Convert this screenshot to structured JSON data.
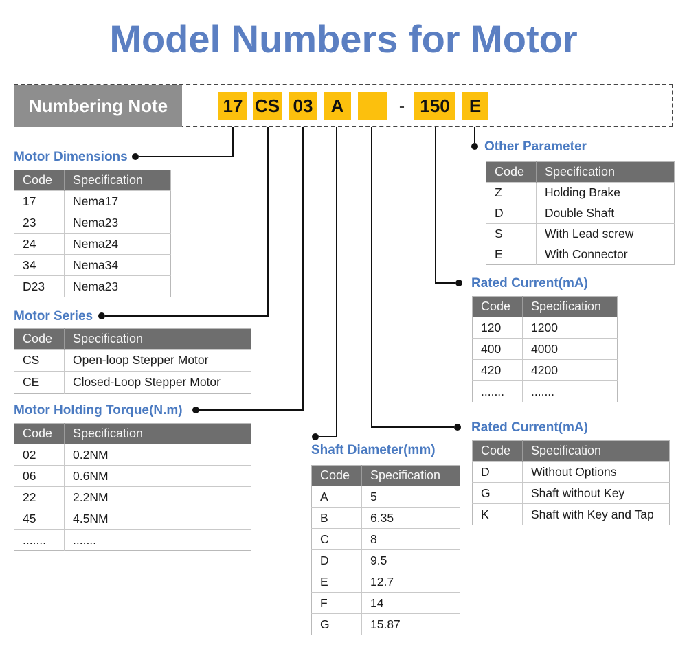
{
  "page_title": "Model Numbers for Motor",
  "numbering": {
    "label": "Numbering Note",
    "codes": [
      "17",
      "CS",
      "03",
      "A",
      "",
      "150",
      "E"
    ],
    "separator": "-"
  },
  "colors": {
    "title_blue": "#5b7fc2",
    "section_blue": "#4a7ac1",
    "header_gray": "#6e6e6e",
    "label_gray": "#8e8e8e",
    "code_yellow": "#fcc00d"
  },
  "tables": {
    "motor_dimensions": {
      "title": "Motor Dimensions",
      "headers": [
        "Code",
        "Specification"
      ],
      "rows": [
        [
          "17",
          "Nema17"
        ],
        [
          "23",
          "Nema23"
        ],
        [
          "24",
          "Nema24"
        ],
        [
          "34",
          "Nema34"
        ],
        [
          "D23",
          "Nema23"
        ]
      ]
    },
    "motor_series": {
      "title": "Motor Series",
      "headers": [
        "Code",
        "Specification"
      ],
      "rows": [
        [
          "CS",
          "Open-loop Stepper Motor"
        ],
        [
          "CE",
          "Closed-Loop Stepper Motor"
        ]
      ]
    },
    "motor_holding_torque": {
      "title": "Motor Holding Torque(N.m)",
      "headers": [
        "Code",
        "Specification"
      ],
      "rows": [
        [
          "02",
          "0.2NM"
        ],
        [
          "06",
          "0.6NM"
        ],
        [
          "22",
          "2.2NM"
        ],
        [
          "45",
          "4.5NM"
        ],
        [
          ".......",
          "......."
        ]
      ]
    },
    "shaft_diameter": {
      "title": "Shaft Diameter(mm)",
      "headers": [
        "Code",
        "Specification"
      ],
      "rows": [
        [
          "A",
          "5"
        ],
        [
          "B",
          "6.35"
        ],
        [
          "C",
          "8"
        ],
        [
          "D",
          "9.5"
        ],
        [
          "E",
          "12.7"
        ],
        [
          "F",
          "14"
        ],
        [
          "G",
          "15.87"
        ]
      ]
    },
    "other_parameter": {
      "title": "Other Parameter",
      "headers": [
        "Code",
        "Specification"
      ],
      "rows": [
        [
          "Z",
          "Holding Brake"
        ],
        [
          "D",
          "Double Shaft"
        ],
        [
          "S",
          "With Lead screw"
        ],
        [
          "E",
          "With Connector"
        ]
      ]
    },
    "rated_current": {
      "title": "Rated Current(mA)",
      "headers": [
        "Code",
        "Specification"
      ],
      "rows": [
        [
          "120",
          "1200"
        ],
        [
          "400",
          "4000"
        ],
        [
          "420",
          "4200"
        ],
        [
          ".......",
          "......."
        ]
      ]
    },
    "rated_current_options": {
      "title": "Rated Current(mA)",
      "headers": [
        "Code",
        "Specification"
      ],
      "rows": [
        [
          "D",
          "Without Options"
        ],
        [
          "G",
          "Shaft without Key"
        ],
        [
          "K",
          "Shaft with Key and Tap"
        ]
      ]
    }
  }
}
